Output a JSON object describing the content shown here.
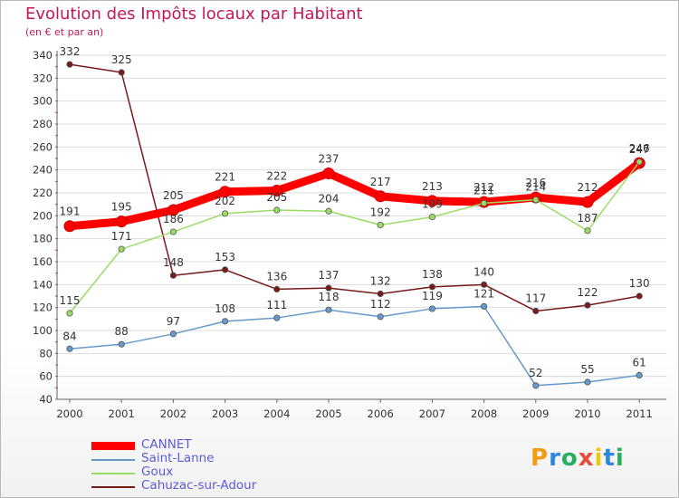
{
  "title": "Evolution des Impôts locaux par Habitant",
  "subtitle": "(en € et par an)",
  "logo": {
    "text": "Proxiti",
    "letters": [
      "P",
      "r",
      "o",
      "x",
      "i",
      "t",
      "i"
    ],
    "colors": [
      "#f39c12",
      "#2e86de",
      "#27ae60",
      "#e74c3c",
      "#f1c40f",
      "#2e86de",
      "#27ae60"
    ]
  },
  "chart_data": {
    "type": "line",
    "x": [
      "2000",
      "2001",
      "2002",
      "2003",
      "2004",
      "2005",
      "2006",
      "2007",
      "2008",
      "2009",
      "2010",
      "2011"
    ],
    "ylim": [
      40,
      340
    ],
    "yticks": [
      40,
      60,
      80,
      100,
      120,
      140,
      160,
      180,
      200,
      220,
      240,
      260,
      280,
      300,
      320,
      340
    ],
    "grid": "horizontal",
    "legend_position": "bottom-left",
    "series": [
      {
        "name": "CANNET",
        "color": "#ff0000",
        "width": 9,
        "values": [
          191,
          195,
          205,
          221,
          222,
          237,
          217,
          213,
          212,
          216,
          212,
          246
        ],
        "labels": [
          "191",
          "195",
          "205",
          "221",
          "222",
          "237",
          "217",
          "213",
          "212",
          "216",
          "212",
          "246"
        ]
      },
      {
        "name": "Saint-Lanne",
        "color": "#6699cc",
        "width": 1.5,
        "values": [
          84,
          88,
          97,
          108,
          111,
          118,
          112,
          119,
          121,
          52,
          55,
          61
        ],
        "labels": [
          "84",
          "88",
          "97",
          "108",
          "111",
          "118",
          "112",
          "119",
          "121",
          "52",
          "55",
          "61"
        ]
      },
      {
        "name": "Goux",
        "color": "#99dd66",
        "width": 1.5,
        "values": [
          115,
          171,
          186,
          202,
          205,
          204,
          192,
          199,
          211,
          214,
          187,
          247
        ],
        "labels": [
          "115",
          "171",
          "186",
          "202",
          "205",
          "204",
          "192",
          "199",
          "211",
          "214",
          "187",
          "247"
        ]
      },
      {
        "name": "Cahuzac-sur-Adour",
        "color": "#771a1a",
        "width": 1.5,
        "values": [
          332,
          325,
          148,
          153,
          136,
          137,
          132,
          138,
          140,
          117,
          122,
          130
        ],
        "labels": [
          "332",
          "325",
          "148",
          "153",
          "136",
          "137",
          "132",
          "138",
          "140",
          "117",
          "122",
          "130"
        ]
      }
    ]
  }
}
